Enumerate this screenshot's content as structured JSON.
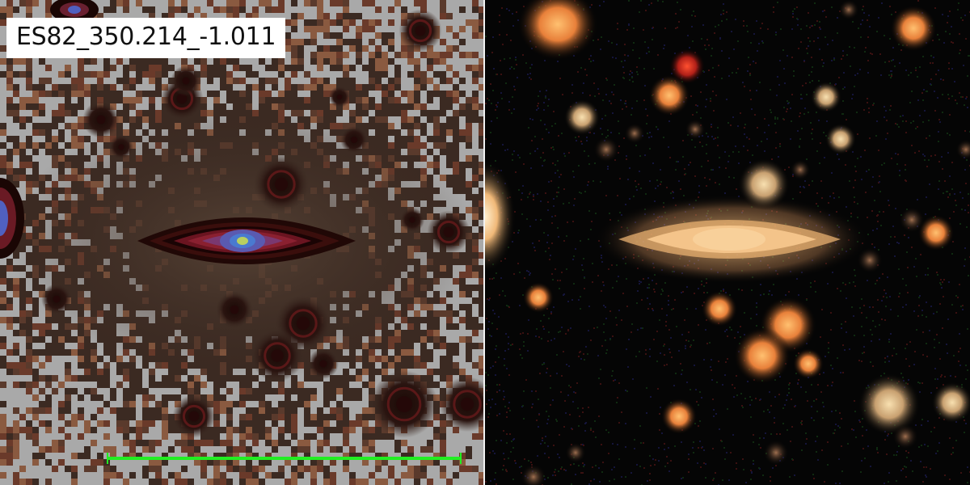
{
  "object_id": "ES82_350.214_-1.011",
  "left_panel": {
    "description_name": "residual/stretched image panel",
    "scalebar_color": "#22ee22",
    "noise_color": "#a9a9a9"
  },
  "right_panel": {
    "description_name": "color composite image panel"
  },
  "colors": {
    "background_left": "#3b2a22",
    "background_right": "#050505",
    "galaxy_core": "#6a6fd0",
    "galaxy_glow": "#f0c080"
  }
}
